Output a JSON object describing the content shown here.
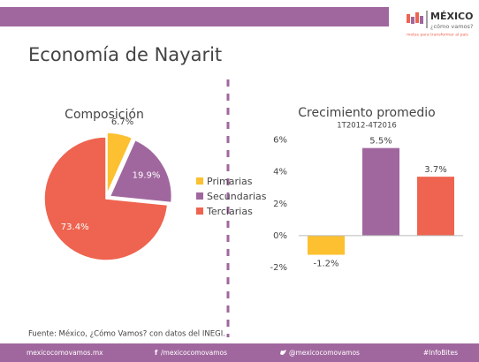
{
  "title": "Economía de Nayarit",
  "logo": {
    "name": "MÉXICO",
    "tagline": "¿cómo vamos?",
    "motto": "metas para transformar al país"
  },
  "chart_data": [
    {
      "type": "pie",
      "title": "Composición",
      "categories": [
        "Primarias",
        "Secundarias",
        "Terciarias"
      ],
      "values": [
        6.7,
        19.9,
        73.4
      ],
      "value_labels": [
        "6.7%",
        "19.9%",
        "73.4%"
      ],
      "colors": [
        "#fcc030",
        "#a0679e",
        "#ee6450"
      ],
      "legend": "right"
    },
    {
      "type": "bar",
      "title": "Crecimiento promedio",
      "subtitle": "1T2012-4T2016",
      "categories": [
        null,
        null,
        null
      ],
      "values": [
        -1.2,
        5.5,
        3.7
      ],
      "value_labels": [
        "-1.2%",
        "5.5%",
        "3.7%"
      ],
      "colors": [
        "#fcc030",
        "#a0679e",
        "#ee6450"
      ],
      "ylim": [
        -2.5,
        6.7
      ],
      "yticks": [
        {
          "value": 6,
          "label": "6%"
        },
        {
          "value": 4,
          "label": "4%"
        },
        {
          "value": 2,
          "label": "2%"
        },
        {
          "value": 0,
          "label": "0%"
        },
        {
          "value": -2,
          "label": "-2%"
        }
      ],
      "grid": false
    }
  ],
  "source": "Fuente: México, ¿Cómo Vamos? con datos del INEGI.",
  "footer": [
    "mexicocomovamos.mx",
    "/mexicocomovamos",
    "@mexicocomovamos",
    "#InfoBites"
  ]
}
